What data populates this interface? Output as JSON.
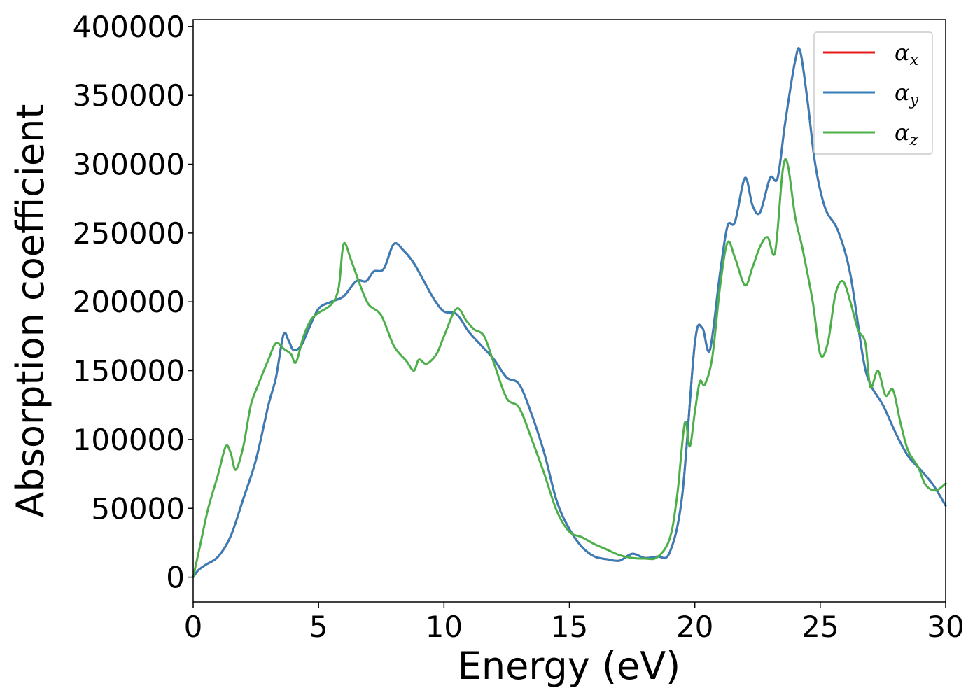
{
  "chart_data": {
    "type": "line",
    "xlabel": "Energy (eV)",
    "ylabel": "Absorption coefficient",
    "xlim": [
      0,
      30
    ],
    "ylim": [
      -18000,
      405000
    ],
    "xticks": [
      0,
      5,
      10,
      15,
      20,
      25,
      30
    ],
    "xtick_labels": [
      "0",
      "5",
      "10",
      "15",
      "20",
      "25",
      "30"
    ],
    "yticks": [
      0,
      50000,
      100000,
      150000,
      200000,
      250000,
      300000,
      350000,
      400000
    ],
    "ytick_labels": [
      "0",
      "50000",
      "100000",
      "150000",
      "200000",
      "250000",
      "300000",
      "350000",
      "400000"
    ],
    "grid": false,
    "legend_position": "top-right",
    "series": [
      {
        "name": "α_x",
        "legend_symbol": "α",
        "legend_subscript": "x",
        "color": "#e41a1c",
        "points": [
          [
            0,
            0
          ],
          [
            0.2,
            5000
          ],
          [
            0.5,
            9000
          ],
          [
            1.0,
            15000
          ],
          [
            1.5,
            30000
          ],
          [
            2.0,
            57000
          ],
          [
            2.5,
            85000
          ],
          [
            3.0,
            125000
          ],
          [
            3.3,
            145000
          ],
          [
            3.6,
            176000
          ],
          [
            3.8,
            172000
          ],
          [
            4.0,
            165000
          ],
          [
            4.3,
            168000
          ],
          [
            4.6,
            180000
          ],
          [
            5.0,
            195000
          ],
          [
            5.5,
            200000
          ],
          [
            6.0,
            204000
          ],
          [
            6.5,
            215000
          ],
          [
            6.9,
            215000
          ],
          [
            7.2,
            222000
          ],
          [
            7.6,
            224000
          ],
          [
            8.0,
            242000
          ],
          [
            8.4,
            237000
          ],
          [
            8.8,
            228000
          ],
          [
            9.2,
            215000
          ],
          [
            9.6,
            202000
          ],
          [
            10.0,
            193000
          ],
          [
            10.5,
            191000
          ],
          [
            11.0,
            178000
          ],
          [
            11.5,
            168000
          ],
          [
            12.0,
            158000
          ],
          [
            12.5,
            145000
          ],
          [
            13.0,
            140000
          ],
          [
            13.5,
            118000
          ],
          [
            14.0,
            90000
          ],
          [
            14.5,
            55000
          ],
          [
            15.0,
            35000
          ],
          [
            15.5,
            22000
          ],
          [
            16.0,
            15000
          ],
          [
            16.5,
            13000
          ],
          [
            17.0,
            12000
          ],
          [
            17.5,
            17000
          ],
          [
            18.0,
            14000
          ],
          [
            18.5,
            15000
          ],
          [
            19.0,
            18000
          ],
          [
            19.5,
            60000
          ],
          [
            20.0,
            170000
          ],
          [
            20.3,
            181000
          ],
          [
            20.6,
            165000
          ],
          [
            21.0,
            220000
          ],
          [
            21.3,
            255000
          ],
          [
            21.6,
            258000
          ],
          [
            22.0,
            290000
          ],
          [
            22.3,
            270000
          ],
          [
            22.6,
            265000
          ],
          [
            23.0,
            290000
          ],
          [
            23.3,
            290000
          ],
          [
            23.6,
            330000
          ],
          [
            24.0,
            375000
          ],
          [
            24.2,
            382000
          ],
          [
            24.5,
            345000
          ],
          [
            24.8,
            300000
          ],
          [
            25.2,
            268000
          ],
          [
            25.7,
            252000
          ],
          [
            26.2,
            220000
          ],
          [
            26.7,
            160000
          ],
          [
            27.0,
            140000
          ],
          [
            27.5,
            125000
          ],
          [
            28.0,
            105000
          ],
          [
            28.5,
            88000
          ],
          [
            29.0,
            78000
          ],
          [
            29.5,
            67000
          ],
          [
            30.0,
            52000
          ]
        ]
      },
      {
        "name": "α_y",
        "legend_symbol": "α",
        "legend_subscript": "y",
        "color": "#377eb8",
        "points": [
          [
            0,
            0
          ],
          [
            0.2,
            5000
          ],
          [
            0.5,
            9000
          ],
          [
            1.0,
            15000
          ],
          [
            1.5,
            30000
          ],
          [
            2.0,
            57000
          ],
          [
            2.5,
            85000
          ],
          [
            3.0,
            125000
          ],
          [
            3.3,
            145000
          ],
          [
            3.6,
            176000
          ],
          [
            3.8,
            172000
          ],
          [
            4.0,
            165000
          ],
          [
            4.3,
            168000
          ],
          [
            4.6,
            180000
          ],
          [
            5.0,
            195000
          ],
          [
            5.5,
            200000
          ],
          [
            6.0,
            204000
          ],
          [
            6.5,
            215000
          ],
          [
            6.9,
            215000
          ],
          [
            7.2,
            222000
          ],
          [
            7.6,
            224000
          ],
          [
            8.0,
            242000
          ],
          [
            8.4,
            237000
          ],
          [
            8.8,
            228000
          ],
          [
            9.2,
            215000
          ],
          [
            9.6,
            202000
          ],
          [
            10.0,
            193000
          ],
          [
            10.5,
            191000
          ],
          [
            11.0,
            178000
          ],
          [
            11.5,
            168000
          ],
          [
            12.0,
            158000
          ],
          [
            12.5,
            145000
          ],
          [
            13.0,
            140000
          ],
          [
            13.5,
            118000
          ],
          [
            14.0,
            90000
          ],
          [
            14.5,
            55000
          ],
          [
            15.0,
            35000
          ],
          [
            15.5,
            22000
          ],
          [
            16.0,
            15000
          ],
          [
            16.5,
            13000
          ],
          [
            17.0,
            12000
          ],
          [
            17.5,
            17000
          ],
          [
            18.0,
            14000
          ],
          [
            18.5,
            15000
          ],
          [
            19.0,
            18000
          ],
          [
            19.5,
            60000
          ],
          [
            20.0,
            170000
          ],
          [
            20.3,
            181000
          ],
          [
            20.6,
            165000
          ],
          [
            21.0,
            220000
          ],
          [
            21.3,
            255000
          ],
          [
            21.6,
            258000
          ],
          [
            22.0,
            290000
          ],
          [
            22.3,
            270000
          ],
          [
            22.6,
            265000
          ],
          [
            23.0,
            290000
          ],
          [
            23.3,
            290000
          ],
          [
            23.6,
            330000
          ],
          [
            24.0,
            375000
          ],
          [
            24.2,
            382000
          ],
          [
            24.5,
            345000
          ],
          [
            24.8,
            300000
          ],
          [
            25.2,
            268000
          ],
          [
            25.7,
            252000
          ],
          [
            26.2,
            220000
          ],
          [
            26.7,
            160000
          ],
          [
            27.0,
            140000
          ],
          [
            27.5,
            125000
          ],
          [
            28.0,
            105000
          ],
          [
            28.5,
            88000
          ],
          [
            29.0,
            78000
          ],
          [
            29.5,
            67000
          ],
          [
            30.0,
            52000
          ]
        ]
      },
      {
        "name": "α_z",
        "legend_symbol": "α",
        "legend_subscript": "z",
        "color": "#4daf4a",
        "points": [
          [
            0,
            0
          ],
          [
            0.3,
            25000
          ],
          [
            0.6,
            50000
          ],
          [
            1.0,
            75000
          ],
          [
            1.3,
            95000
          ],
          [
            1.5,
            90000
          ],
          [
            1.7,
            78000
          ],
          [
            2.0,
            95000
          ],
          [
            2.3,
            125000
          ],
          [
            2.6,
            140000
          ],
          [
            3.0,
            158000
          ],
          [
            3.3,
            170000
          ],
          [
            3.6,
            166000
          ],
          [
            3.9,
            162000
          ],
          [
            4.1,
            156000
          ],
          [
            4.4,
            175000
          ],
          [
            4.7,
            187000
          ],
          [
            5.0,
            192000
          ],
          [
            5.5,
            198000
          ],
          [
            5.8,
            210000
          ],
          [
            6.0,
            242000
          ],
          [
            6.3,
            230000
          ],
          [
            6.7,
            210000
          ],
          [
            7.0,
            198000
          ],
          [
            7.5,
            190000
          ],
          [
            8.0,
            168000
          ],
          [
            8.5,
            157000
          ],
          [
            8.8,
            150000
          ],
          [
            9.0,
            158000
          ],
          [
            9.3,
            155000
          ],
          [
            9.7,
            162000
          ],
          [
            10.0,
            175000
          ],
          [
            10.5,
            195000
          ],
          [
            10.9,
            186000
          ],
          [
            11.2,
            180000
          ],
          [
            11.6,
            175000
          ],
          [
            12.0,
            155000
          ],
          [
            12.5,
            130000
          ],
          [
            13.0,
            123000
          ],
          [
            13.5,
            100000
          ],
          [
            14.0,
            75000
          ],
          [
            14.5,
            48000
          ],
          [
            15.0,
            33000
          ],
          [
            15.5,
            29000
          ],
          [
            16.0,
            24000
          ],
          [
            16.5,
            20000
          ],
          [
            17.0,
            16000
          ],
          [
            17.5,
            14000
          ],
          [
            18.0,
            13500
          ],
          [
            18.5,
            14500
          ],
          [
            19.0,
            28000
          ],
          [
            19.3,
            60000
          ],
          [
            19.6,
            112000
          ],
          [
            19.8,
            95000
          ],
          [
            20.0,
            120000
          ],
          [
            20.2,
            142000
          ],
          [
            20.4,
            140000
          ],
          [
            20.7,
            160000
          ],
          [
            21.0,
            210000
          ],
          [
            21.3,
            243000
          ],
          [
            21.6,
            232000
          ],
          [
            22.0,
            212000
          ],
          [
            22.3,
            225000
          ],
          [
            22.6,
            240000
          ],
          [
            22.9,
            247000
          ],
          [
            23.2,
            236000
          ],
          [
            23.5,
            295000
          ],
          [
            23.7,
            300000
          ],
          [
            24.0,
            262000
          ],
          [
            24.3,
            238000
          ],
          [
            24.7,
            200000
          ],
          [
            25.0,
            162000
          ],
          [
            25.3,
            170000
          ],
          [
            25.6,
            205000
          ],
          [
            25.9,
            215000
          ],
          [
            26.2,
            200000
          ],
          [
            26.5,
            180000
          ],
          [
            26.8,
            170000
          ],
          [
            27.0,
            138000
          ],
          [
            27.3,
            150000
          ],
          [
            27.6,
            132000
          ],
          [
            27.9,
            136000
          ],
          [
            28.2,
            112000
          ],
          [
            28.5,
            92000
          ],
          [
            28.9,
            80000
          ],
          [
            29.2,
            67000
          ],
          [
            29.6,
            63000
          ],
          [
            30.0,
            68000
          ]
        ]
      }
    ]
  }
}
